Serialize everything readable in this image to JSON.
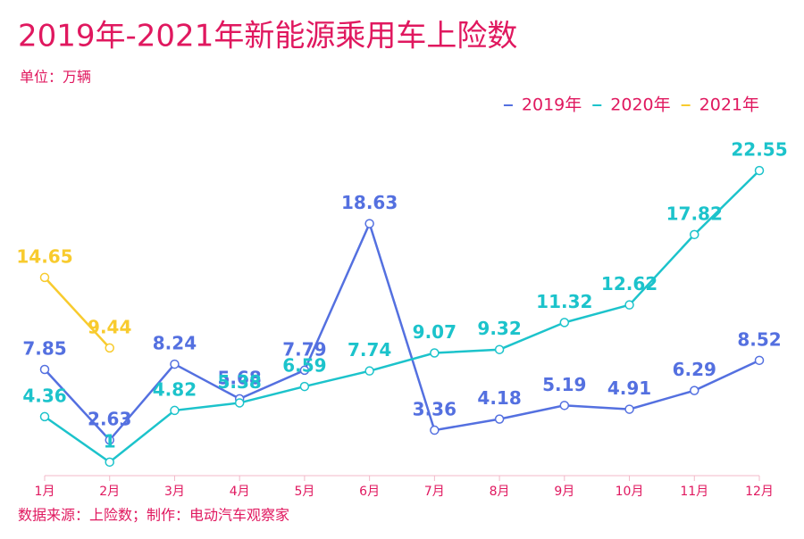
{
  "chart_data": {
    "type": "line",
    "title": "2019年-2021年新能源乘用车上险数",
    "unit": "单位：万辆",
    "source": "数据来源：上险数；制作：电动汽车观察家",
    "categories": [
      "1月",
      "2月",
      "3月",
      "4月",
      "5月",
      "6月",
      "7月",
      "8月",
      "9月",
      "10月",
      "11月",
      "12月"
    ],
    "series": [
      {
        "name": "2019年",
        "color": "#5470e0",
        "values": [
          7.85,
          2.63,
          8.24,
          5.68,
          7.79,
          18.63,
          3.36,
          4.18,
          5.19,
          4.91,
          6.29,
          8.52
        ]
      },
      {
        "name": "2020年",
        "color": "#1cc3cb",
        "values": [
          4.36,
          1,
          4.82,
          5.38,
          6.59,
          7.74,
          9.07,
          9.32,
          11.32,
          12.62,
          17.82,
          22.55
        ]
      },
      {
        "name": "2021年",
        "color": "#f8cb2e",
        "values": [
          14.65,
          9.44,
          null,
          null,
          null,
          null,
          null,
          null,
          null,
          null,
          null,
          null
        ]
      }
    ],
    "ylim": [
      0,
      25
    ],
    "legend": "top-right"
  }
}
